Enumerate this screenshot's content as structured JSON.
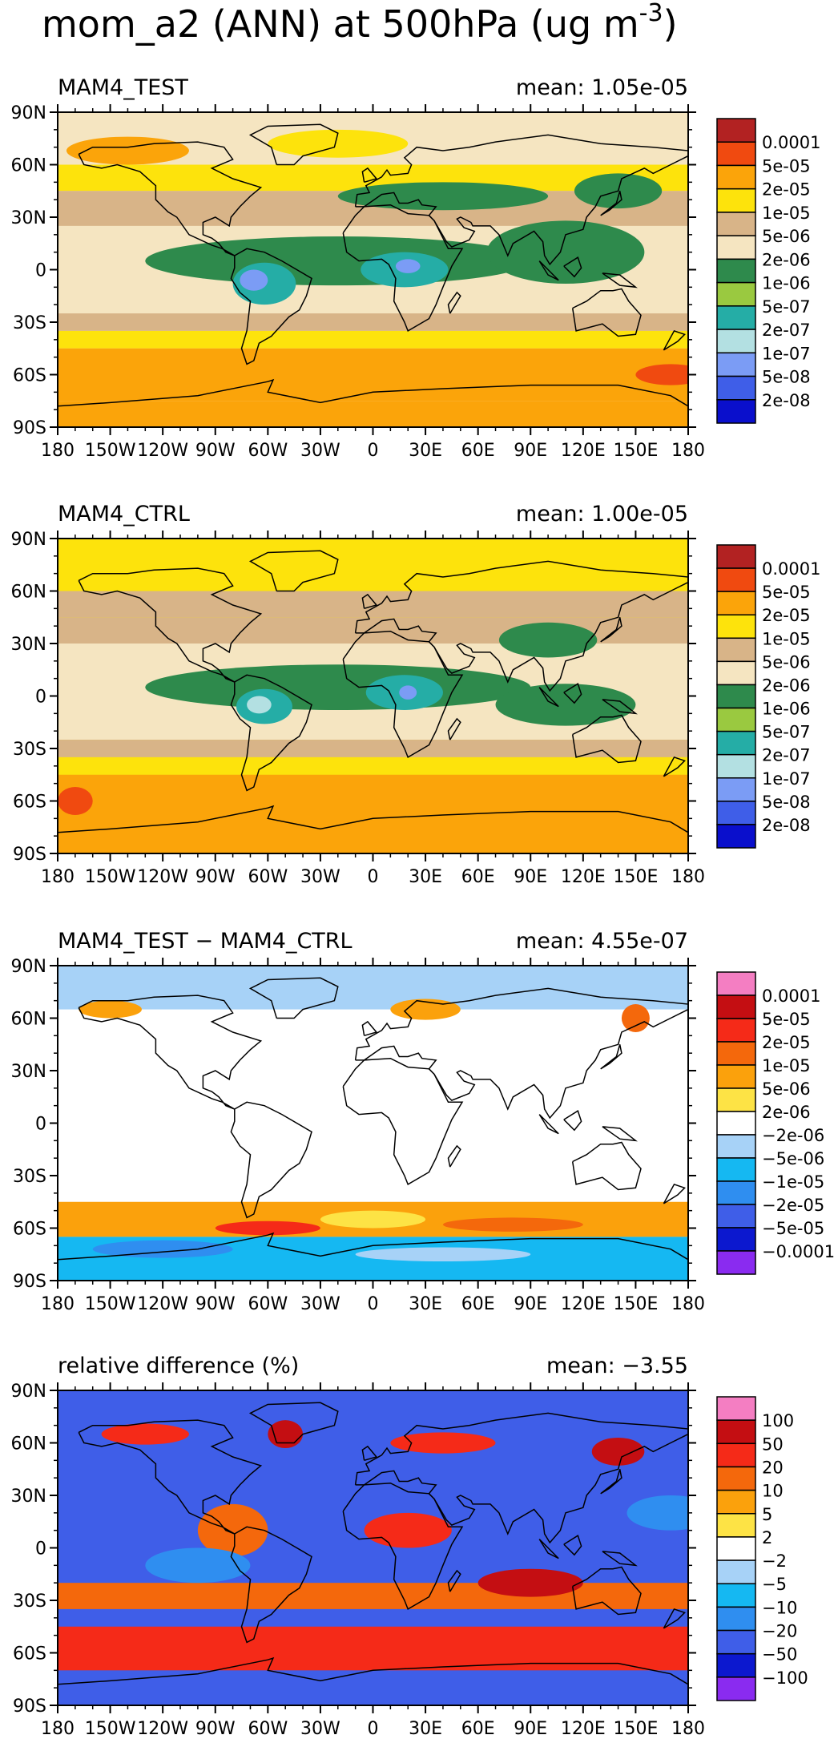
{
  "figure": {
    "title": "mom_a2 (ANN) at 500hPa (ug m",
    "title_unit_sup": "-3",
    "title_close": ")"
  },
  "axes": {
    "lat_ticks": [
      "90N",
      "60N",
      "30N",
      "0",
      "30S",
      "60S",
      "90S"
    ],
    "lon_ticks": [
      "180",
      "150W",
      "120W",
      "90W",
      "60W",
      "30W",
      "0",
      "30E",
      "60E",
      "90E",
      "120E",
      "150E",
      "180"
    ]
  },
  "chart_data": [
    {
      "type": "heatmap",
      "name": "MAM4_TEST",
      "mean_label": "mean: 1.05e-05",
      "xlim": [
        -180,
        180
      ],
      "ylim": [
        -90,
        90
      ],
      "colorbar": {
        "labels": [
          "0.0001",
          "5e-05",
          "2e-05",
          "1e-05",
          "5e-06",
          "2e-06",
          "1e-06",
          "5e-07",
          "2e-07",
          "1e-07",
          "5e-08",
          "2e-08"
        ],
        "colors": [
          "#b22222",
          "#f04a10",
          "#fba40a",
          "#fde30c",
          "#d8b488",
          "#f5e5c1",
          "#2e8a4c",
          "#9ac940",
          "#25ada6",
          "#b3e0e2",
          "#7b9cf5",
          "#3f5ee8",
          "#0a0fcc"
        ]
      },
      "bands": [
        {
          "lat": [
            60,
            90
          ],
          "level": 5
        },
        {
          "lat": [
            45,
            60
          ],
          "level": 3
        },
        {
          "lat": [
            25,
            45
          ],
          "level": 4
        },
        {
          "lat": [
            -25,
            25
          ],
          "level": 5
        },
        {
          "lat": [
            -35,
            -25
          ],
          "level": 4
        },
        {
          "lat": [
            -45,
            -35
          ],
          "level": 3
        },
        {
          "lat": [
            -75,
            -45
          ],
          "level": 2
        },
        {
          "lat": [
            -90,
            -75
          ],
          "level": 2
        }
      ],
      "blobs": [
        {
          "lon": -20,
          "lat": 5,
          "rx": 110,
          "ry": 14,
          "level": 6
        },
        {
          "lon": 110,
          "lat": 10,
          "rx": 45,
          "ry": 18,
          "level": 6
        },
        {
          "lon": 40,
          "lat": 42,
          "rx": 60,
          "ry": 8,
          "level": 6
        },
        {
          "lon": 140,
          "lat": 45,
          "rx": 25,
          "ry": 10,
          "level": 6
        },
        {
          "lon": -62,
          "lat": -8,
          "rx": 18,
          "ry": 12,
          "level": 8
        },
        {
          "lon": 18,
          "lat": 0,
          "rx": 25,
          "ry": 10,
          "level": 8
        },
        {
          "lon": -68,
          "lat": -6,
          "rx": 8,
          "ry": 6,
          "level": 10
        },
        {
          "lon": 20,
          "lat": 2,
          "rx": 7,
          "ry": 4,
          "level": 10
        },
        {
          "lon": -20,
          "lat": 72,
          "rx": 40,
          "ry": 8,
          "level": 3
        },
        {
          "lon": -140,
          "lat": 68,
          "rx": 35,
          "ry": 8,
          "level": 2
        },
        {
          "lon": 170,
          "lat": -60,
          "rx": 20,
          "ry": 6,
          "level": 1
        }
      ]
    },
    {
      "type": "heatmap",
      "name": "MAM4_CTRL",
      "mean_label": "mean: 1.00e-05",
      "xlim": [
        -180,
        180
      ],
      "ylim": [
        -90,
        90
      ],
      "colorbar": {
        "labels": [
          "0.0001",
          "5e-05",
          "2e-05",
          "1e-05",
          "5e-06",
          "2e-06",
          "1e-06",
          "5e-07",
          "2e-07",
          "1e-07",
          "5e-08",
          "2e-08"
        ],
        "colors": [
          "#b22222",
          "#f04a10",
          "#fba40a",
          "#fde30c",
          "#d8b488",
          "#f5e5c1",
          "#2e8a4c",
          "#9ac940",
          "#25ada6",
          "#b3e0e2",
          "#7b9cf5",
          "#3f5ee8",
          "#0a0fcc"
        ]
      },
      "bands": [
        {
          "lat": [
            60,
            90
          ],
          "level": 3
        },
        {
          "lat": [
            45,
            60
          ],
          "level": 4
        },
        {
          "lat": [
            30,
            45
          ],
          "level": 4
        },
        {
          "lat": [
            -25,
            30
          ],
          "level": 5
        },
        {
          "lat": [
            -35,
            -25
          ],
          "level": 4
        },
        {
          "lat": [
            -45,
            -35
          ],
          "level": 3
        },
        {
          "lat": [
            -90,
            -45
          ],
          "level": 2
        }
      ],
      "blobs": [
        {
          "lon": -20,
          "lat": 5,
          "rx": 110,
          "ry": 13,
          "level": 6
        },
        {
          "lon": 110,
          "lat": -5,
          "rx": 40,
          "ry": 12,
          "level": 6
        },
        {
          "lon": 100,
          "lat": 32,
          "rx": 28,
          "ry": 10,
          "level": 6
        },
        {
          "lon": -62,
          "lat": -6,
          "rx": 16,
          "ry": 10,
          "level": 8
        },
        {
          "lon": 18,
          "lat": 2,
          "rx": 22,
          "ry": 10,
          "level": 8
        },
        {
          "lon": -65,
          "lat": -5,
          "rx": 7,
          "ry": 5,
          "level": 9
        },
        {
          "lon": 20,
          "lat": 2,
          "rx": 5,
          "ry": 4,
          "level": 10
        },
        {
          "lon": 0,
          "lat": 80,
          "rx": 80,
          "ry": 8,
          "level": 3
        },
        {
          "lon": -170,
          "lat": -60,
          "rx": 10,
          "ry": 8,
          "level": 1
        }
      ]
    },
    {
      "type": "heatmap",
      "name": "MAM4_TEST − MAM4_CTRL",
      "mean_label": "mean: 4.55e-07",
      "xlim": [
        -180,
        180
      ],
      "ylim": [
        -90,
        90
      ],
      "colorbar": {
        "labels": [
          "0.0001",
          "5e-05",
          "2e-05",
          "1e-05",
          "5e-06",
          "2e-06",
          "−2e-06",
          "−5e-06",
          "−1e-05",
          "−2e-05",
          "−5e-05",
          "−0.0001"
        ],
        "colors": [
          "#f47ec2",
          "#c40e12",
          "#f52a18",
          "#f4680c",
          "#fba10c",
          "#fde345",
          "#ffffff",
          "#a7d2f7",
          "#15b8f2",
          "#2f8ef0",
          "#3f5ee8",
          "#0c18cf",
          "#8a2bf0"
        ]
      },
      "bands": [
        {
          "lat": [
            -90,
            90
          ],
          "level": 6
        },
        {
          "lat": [
            65,
            90
          ],
          "level": 7
        },
        {
          "lat": [
            -65,
            -45
          ],
          "level": 4
        },
        {
          "lat": [
            -90,
            -65
          ],
          "level": 8
        }
      ],
      "blobs": [
        {
          "lon": -150,
          "lat": 65,
          "rx": 18,
          "ry": 5,
          "level": 4
        },
        {
          "lon": 30,
          "lat": 65,
          "rx": 20,
          "ry": 6,
          "level": 4
        },
        {
          "lon": 150,
          "lat": 60,
          "rx": 8,
          "ry": 8,
          "level": 3
        },
        {
          "lon": -60,
          "lat": -60,
          "rx": 30,
          "ry": 4,
          "level": 2
        },
        {
          "lon": 80,
          "lat": -58,
          "rx": 40,
          "ry": 4,
          "level": 3
        },
        {
          "lon": 0,
          "lat": -55,
          "rx": 30,
          "ry": 5,
          "level": 5
        },
        {
          "lon": -120,
          "lat": -72,
          "rx": 40,
          "ry": 5,
          "level": 9
        },
        {
          "lon": 40,
          "lat": -75,
          "rx": 50,
          "ry": 4,
          "level": 7
        }
      ]
    },
    {
      "type": "heatmap",
      "name": "relative difference (%)",
      "mean_label": "mean: −3.55",
      "xlim": [
        -180,
        180
      ],
      "ylim": [
        -90,
        90
      ],
      "colorbar": {
        "labels": [
          "100",
          "50",
          "20",
          "10",
          "5",
          "2",
          "−2",
          "−5",
          "−10",
          "−20",
          "−50",
          "−100"
        ],
        "colors": [
          "#f47ec2",
          "#c40e12",
          "#f52a18",
          "#f4680c",
          "#fba10c",
          "#fde345",
          "#ffffff",
          "#a7d2f7",
          "#15b8f2",
          "#2f8ef0",
          "#3f5ee8",
          "#0c18cf",
          "#8a2bf0"
        ]
      },
      "bands": [
        {
          "lat": [
            -90,
            90
          ],
          "level": 10
        },
        {
          "lat": [
            -70,
            -45
          ],
          "level": 2
        },
        {
          "lat": [
            -35,
            -20
          ],
          "level": 3
        }
      ],
      "blobs": [
        {
          "lon": -130,
          "lat": 65,
          "rx": 25,
          "ry": 6,
          "level": 2
        },
        {
          "lon": -50,
          "lat": 65,
          "rx": 10,
          "ry": 8,
          "level": 1
        },
        {
          "lon": 40,
          "lat": 60,
          "rx": 30,
          "ry": 6,
          "level": 2
        },
        {
          "lon": 140,
          "lat": 55,
          "rx": 15,
          "ry": 8,
          "level": 1
        },
        {
          "lon": -80,
          "lat": 10,
          "rx": 20,
          "ry": 15,
          "level": 3
        },
        {
          "lon": 20,
          "lat": 10,
          "rx": 25,
          "ry": 10,
          "level": 2
        },
        {
          "lon": 90,
          "lat": -20,
          "rx": 30,
          "ry": 8,
          "level": 1
        },
        {
          "lon": -100,
          "lat": -10,
          "rx": 30,
          "ry": 10,
          "level": 9
        },
        {
          "lon": 170,
          "lat": 20,
          "rx": 25,
          "ry": 10,
          "level": 9
        }
      ]
    }
  ]
}
